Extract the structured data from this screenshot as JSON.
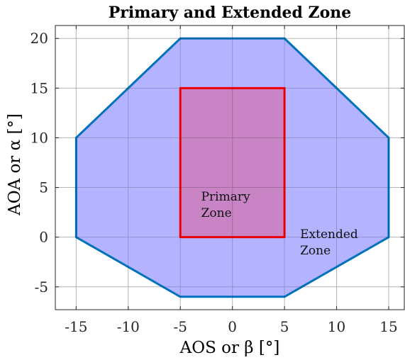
{
  "chart_data": {
    "type": "area",
    "title": "Primary and Extended Zone",
    "xlabel": "AOS or β [°]",
    "ylabel": "AOA or α [°]",
    "xlim": [
      -17,
      16.5
    ],
    "ylim": [
      -7.3,
      21.3
    ],
    "xticks": [
      -15,
      -10,
      -5,
      0,
      5,
      10,
      15
    ],
    "yticks": [
      -5,
      0,
      5,
      10,
      15,
      20
    ],
    "xtick_labels": [
      "-15",
      "-10",
      "-5",
      "0",
      "5",
      "10",
      "15"
    ],
    "ytick_labels": [
      "-5",
      "0",
      "5",
      "10",
      "15",
      "20"
    ],
    "grid": true,
    "series": [
      {
        "key": "extended",
        "label_lines": [
          "Extended",
          "Zone"
        ],
        "label_anchor": [
          6.5,
          -0.1
        ],
        "fill": "#b3b3ff",
        "stroke": "#0072bd",
        "points": [
          [
            -5,
            20
          ],
          [
            5,
            20
          ],
          [
            15,
            10
          ],
          [
            15,
            0
          ],
          [
            5,
            -6
          ],
          [
            -5,
            -6
          ],
          [
            -15,
            0
          ],
          [
            -15,
            10
          ]
        ]
      },
      {
        "key": "primary",
        "label_lines": [
          "Primary",
          "Zone"
        ],
        "label_anchor": [
          -3,
          3.7
        ],
        "fill": "#c884c4",
        "stroke": "#ff0000",
        "points": [
          [
            -5,
            15
          ],
          [
            5,
            15
          ],
          [
            5,
            0
          ],
          [
            -5,
            0
          ]
        ]
      }
    ]
  }
}
